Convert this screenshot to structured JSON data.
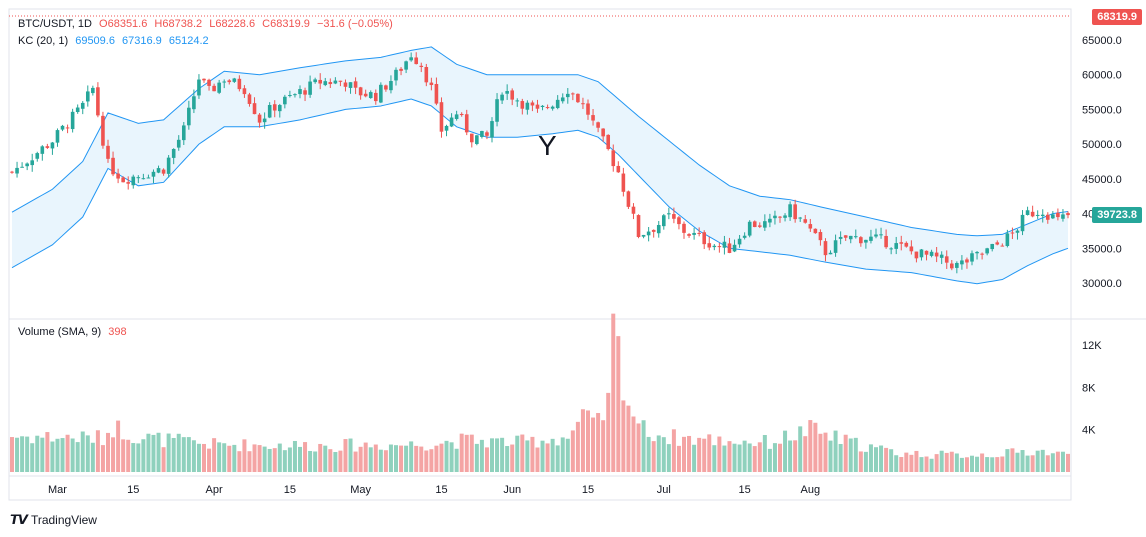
{
  "header": {
    "symbol": "BTC/USDT, 1D",
    "open": "O68351.6",
    "high": "H68738.2",
    "low": "L68228.6",
    "close": "C68319.9",
    "change": "−31.6 (−0.05%)"
  },
  "indicator": {
    "name": "KC (20, 1)",
    "upper": "69509.6",
    "middle": "67316.9",
    "lower": "65124.2"
  },
  "volume_legend": {
    "name": "Volume (SMA, 9)",
    "value": "398"
  },
  "price_tags": {
    "top": "68319.9",
    "last": "39723.8"
  },
  "annotation": "Y",
  "brand": "TradingView",
  "colors": {
    "up": "#26a69a",
    "down": "#ef5350",
    "band": "#2196f3",
    "band_fill": "#e3f2fd",
    "vol_up": "#8fd1bd",
    "vol_down": "#f4a4a4"
  },
  "chart_data": {
    "type": "candlestick",
    "price_axis_ticks": [
      "65000.0",
      "60000.0",
      "55000.0",
      "50000.0",
      "45000.0",
      "40000.0",
      "35000.0",
      "30000.0"
    ],
    "volume_axis_ticks": [
      "12K",
      "8K",
      "4K"
    ],
    "x_tick_labels": [
      "Mar",
      "15",
      "Apr",
      "15",
      "May",
      "15",
      "Jun",
      "15",
      "Jul",
      "15",
      "Aug"
    ],
    "ylim": [
      27000,
      67000
    ],
    "volume_ylim": [
      0,
      14000
    ],
    "grid": false,
    "close_path": [
      [
        0,
        46000
      ],
      [
        8,
        50500
      ],
      [
        14,
        55500
      ],
      [
        16,
        58000
      ],
      [
        19,
        47000
      ],
      [
        22,
        45000
      ],
      [
        25,
        45500
      ],
      [
        30,
        46500
      ],
      [
        34,
        52000
      ],
      [
        37,
        59500
      ],
      [
        39,
        57500
      ],
      [
        42,
        59500
      ],
      [
        46,
        58000
      ],
      [
        49,
        53500
      ],
      [
        52,
        55500
      ],
      [
        57,
        57500
      ],
      [
        61,
        59000
      ],
      [
        66,
        59000
      ],
      [
        68,
        57500
      ],
      [
        72,
        57000
      ],
      [
        76,
        60000
      ],
      [
        79,
        63000
      ],
      [
        81,
        61500
      ],
      [
        83,
        58000
      ],
      [
        85,
        52000
      ],
      [
        88,
        54500
      ],
      [
        91,
        51000
      ],
      [
        94,
        51000
      ],
      [
        97,
        58000
      ],
      [
        100,
        56500
      ],
      [
        104,
        54500
      ],
      [
        107,
        56000
      ],
      [
        110,
        58000
      ],
      [
        112,
        56500
      ],
      [
        114,
        54500
      ],
      [
        116,
        51500
      ],
      [
        118,
        49000
      ],
      [
        120,
        46000
      ],
      [
        122,
        41500
      ],
      [
        124,
        37000
      ],
      [
        127,
        38000
      ],
      [
        130,
        39500
      ],
      [
        133,
        37500
      ],
      [
        136,
        36500
      ],
      [
        139,
        35500
      ],
      [
        142,
        35000
      ],
      [
        146,
        38500
      ],
      [
        150,
        38500
      ],
      [
        154,
        40500
      ],
      [
        157,
        38500
      ],
      [
        161,
        34500
      ],
      [
        165,
        36500
      ],
      [
        169,
        36500
      ],
      [
        173,
        36000
      ],
      [
        178,
        34500
      ],
      [
        183,
        33500
      ],
      [
        187,
        32500
      ],
      [
        190,
        33500
      ],
      [
        194,
        35000
      ],
      [
        198,
        37000
      ],
      [
        201,
        40000
      ],
      [
        204,
        40500
      ],
      [
        207,
        39000
      ],
      [
        209,
        39700
      ]
    ],
    "kc_upper_path": [
      [
        0,
        40200
      ],
      [
        8,
        43500
      ],
      [
        14,
        47500
      ],
      [
        19,
        54500
      ],
      [
        25,
        53000
      ],
      [
        30,
        53500
      ],
      [
        37,
        58000
      ],
      [
        42,
        60500
      ],
      [
        49,
        60000
      ],
      [
        57,
        61000
      ],
      [
        66,
        62000
      ],
      [
        73,
        62500
      ],
      [
        79,
        63500
      ],
      [
        83,
        64000
      ],
      [
        88,
        61500
      ],
      [
        94,
        60000
      ],
      [
        100,
        60000
      ],
      [
        107,
        60000
      ],
      [
        112,
        60000
      ],
      [
        116,
        59000
      ],
      [
        120,
        56500
      ],
      [
        124,
        54000
      ],
      [
        130,
        50500
      ],
      [
        136,
        47000
      ],
      [
        142,
        44000
      ],
      [
        148,
        42500
      ],
      [
        154,
        42000
      ],
      [
        161,
        40800
      ],
      [
        169,
        39500
      ],
      [
        178,
        38000
      ],
      [
        187,
        37000
      ],
      [
        191,
        36800
      ],
      [
        196,
        37000
      ],
      [
        201,
        38500
      ],
      [
        206,
        40000
      ],
      [
        209,
        40300
      ]
    ],
    "kc_middle_path": [
      [
        0,
        36200
      ],
      [
        8,
        39500
      ],
      [
        14,
        43500
      ],
      [
        19,
        50500
      ],
      [
        25,
        48500
      ],
      [
        30,
        49000
      ],
      [
        37,
        54000
      ],
      [
        42,
        56500
      ],
      [
        49,
        56500
      ],
      [
        57,
        57500
      ],
      [
        66,
        58500
      ],
      [
        73,
        59000
      ],
      [
        79,
        60000
      ],
      [
        83,
        59500
      ],
      [
        88,
        57000
      ],
      [
        94,
        55500
      ],
      [
        100,
        55500
      ],
      [
        107,
        56000
      ],
      [
        112,
        56000
      ],
      [
        116,
        55000
      ],
      [
        120,
        52500
      ],
      [
        124,
        49500
      ],
      [
        130,
        45500
      ],
      [
        136,
        42000
      ],
      [
        142,
        39500
      ],
      [
        148,
        38500
      ],
      [
        154,
        38000
      ],
      [
        161,
        37000
      ],
      [
        169,
        35800
      ],
      [
        178,
        34800
      ],
      [
        187,
        33500
      ],
      [
        191,
        33200
      ],
      [
        196,
        33600
      ],
      [
        201,
        35500
      ],
      [
        206,
        37000
      ],
      [
        209,
        37500
      ]
    ],
    "kc_lower_path": [
      [
        0,
        32200
      ],
      [
        8,
        35500
      ],
      [
        14,
        39500
      ],
      [
        19,
        46500
      ],
      [
        25,
        44000
      ],
      [
        30,
        44500
      ],
      [
        37,
        50000
      ],
      [
        42,
        52500
      ],
      [
        49,
        52500
      ],
      [
        57,
        53500
      ],
      [
        66,
        55000
      ],
      [
        73,
        55500
      ],
      [
        79,
        56500
      ],
      [
        83,
        55500
      ],
      [
        88,
        52500
      ],
      [
        94,
        51000
      ],
      [
        100,
        51000
      ],
      [
        107,
        51500
      ],
      [
        112,
        52000
      ],
      [
        116,
        51000
      ],
      [
        120,
        48500
      ],
      [
        124,
        45500
      ],
      [
        130,
        41000
      ],
      [
        136,
        37500
      ],
      [
        142,
        35000
      ],
      [
        148,
        34500
      ],
      [
        154,
        34000
      ],
      [
        161,
        33000
      ],
      [
        169,
        32000
      ],
      [
        178,
        31500
      ],
      [
        187,
        30300
      ],
      [
        191,
        29900
      ],
      [
        196,
        30500
      ],
      [
        201,
        32500
      ],
      [
        206,
        34200
      ],
      [
        209,
        35000
      ]
    ],
    "volume_profile": [
      [
        0,
        3400
      ],
      [
        18,
        3200
      ],
      [
        20,
        4300
      ],
      [
        25,
        3300
      ],
      [
        40,
        2600
      ],
      [
        60,
        2500
      ],
      [
        80,
        2600
      ],
      [
        90,
        3000
      ],
      [
        100,
        2800
      ],
      [
        110,
        3300
      ],
      [
        113,
        5000
      ],
      [
        116,
        4500
      ],
      [
        118,
        6500
      ],
      [
        119,
        13000
      ],
      [
        120,
        11500
      ],
      [
        121,
        9000
      ],
      [
        122,
        6500
      ],
      [
        125,
        4000
      ],
      [
        130,
        3300
      ],
      [
        140,
        3000
      ],
      [
        150,
        2800
      ],
      [
        158,
        4000
      ],
      [
        165,
        2900
      ],
      [
        175,
        1800
      ],
      [
        185,
        1600
      ],
      [
        195,
        1700
      ],
      [
        203,
        2000
      ],
      [
        209,
        1600
      ]
    ]
  }
}
